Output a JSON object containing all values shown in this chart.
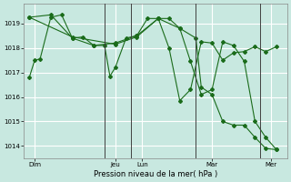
{
  "background_color": "#c8e8e0",
  "grid_color": "#b0d8d0",
  "line_color": "#1a6b1a",
  "marker_color": "#1a6b1a",
  "title": "Pression niveau de la mer( hPa )",
  "ylim": [
    1013.5,
    1019.8
  ],
  "yticks": [
    1014,
    1015,
    1016,
    1017,
    1018,
    1019
  ],
  "day_labels": [
    "Dim",
    "Jeu",
    "Lun",
    "Mar",
    "Mer"
  ],
  "day_positions": [
    0.5,
    8,
    10.5,
    17,
    22.5
  ],
  "vline_positions": [
    7,
    9.5,
    15.5,
    21.5
  ],
  "xlim": [
    -0.5,
    24
  ],
  "line1_x": [
    0,
    0.5,
    1,
    2,
    3,
    4,
    5,
    6,
    7,
    7.5,
    8,
    9,
    10,
    11,
    12,
    13,
    14,
    15,
    16,
    17,
    18,
    19,
    20,
    21,
    22,
    23
  ],
  "line1_y": [
    1016.8,
    1017.5,
    1017.55,
    1019.25,
    1019.35,
    1018.4,
    1018.45,
    1018.1,
    1018.1,
    1016.85,
    1017.2,
    1018.4,
    1018.5,
    1019.2,
    1019.2,
    1018.0,
    1015.85,
    1016.3,
    1018.25,
    1018.2,
    1017.5,
    1017.8,
    1017.85,
    1018.05,
    1017.85,
    1018.05
  ],
  "line2_x": [
    0,
    2,
    4,
    6,
    8,
    10,
    12,
    14,
    15.5,
    16,
    17,
    18,
    19,
    20,
    21,
    22,
    23
  ],
  "line2_y": [
    1019.25,
    1019.35,
    1018.4,
    1018.1,
    1018.2,
    1018.5,
    1019.2,
    1018.8,
    1018.4,
    1016.4,
    1016.1,
    1015.0,
    1014.85,
    1014.85,
    1014.35,
    1013.9,
    1013.85
  ],
  "line3_x": [
    0,
    4,
    8,
    10,
    12,
    13,
    14,
    15,
    16,
    17,
    18,
    19,
    20,
    21,
    22,
    23
  ],
  "line3_y": [
    1019.25,
    1018.45,
    1018.15,
    1018.45,
    1019.2,
    1019.2,
    1018.8,
    1017.45,
    1016.1,
    1016.3,
    1018.25,
    1018.1,
    1017.45,
    1015.0,
    1014.35,
    1013.85
  ]
}
